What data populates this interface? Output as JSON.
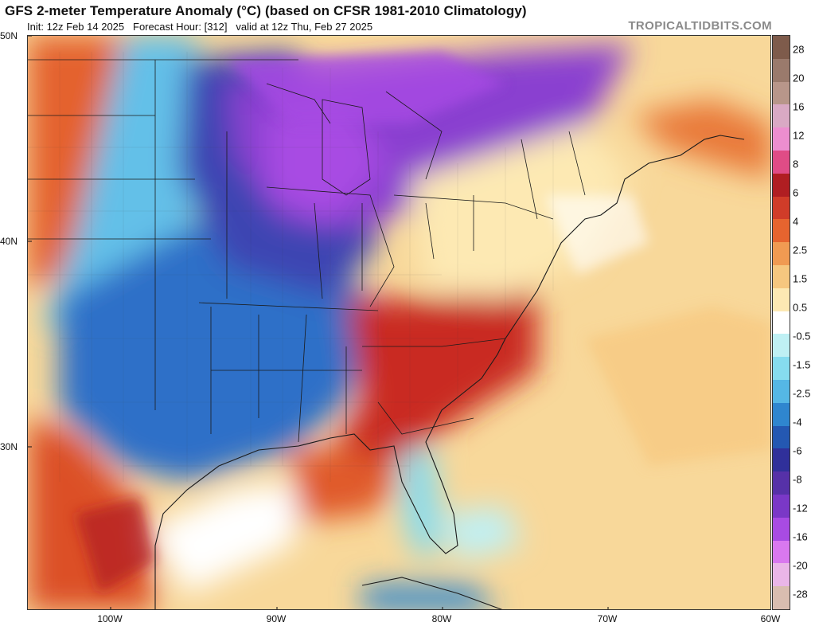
{
  "header": {
    "title": "GFS 2-meter Temperature Anomaly (°C) (based on CFSR 1981-2010 Climatology)",
    "init": "Init: 12z Feb 14 2025",
    "forecast_hour": "Forecast Hour: [312]",
    "valid": "valid at 12z Thu, Feb 27 2025",
    "brand": "TROPICALTIDBITS.COM"
  },
  "map": {
    "latitude_labels": [
      "50N",
      "40N",
      "30N"
    ],
    "longitude_labels": [
      "100W",
      "90W",
      "80W",
      "70W",
      "60W"
    ]
  },
  "colorbar": {
    "labels": [
      "28",
      "20",
      "16",
      "12",
      "8",
      "6",
      "4",
      "2.5",
      "1.5",
      "0.5",
      "-0.5",
      "-1.5",
      "-2.5",
      "-4",
      "-6",
      "-8",
      "-12",
      "-16",
      "-20",
      "-28"
    ],
    "colors": [
      "#7e5b4b",
      "#9a7a6c",
      "#b8968a",
      "#d9a9c4",
      "#ec8ecf",
      "#e04c86",
      "#b01e22",
      "#d03c29",
      "#e6642f",
      "#f09a52",
      "#f6c77f",
      "#fde9b3",
      "#ffffff",
      "#bff0f4",
      "#86dcef",
      "#55b7e5",
      "#2f86cf",
      "#2458b2",
      "#30309a",
      "#5631a8",
      "#7a38c7",
      "#a84be3",
      "#d978ef",
      "#eab6e8",
      "#d9bdb0"
    ]
  }
}
